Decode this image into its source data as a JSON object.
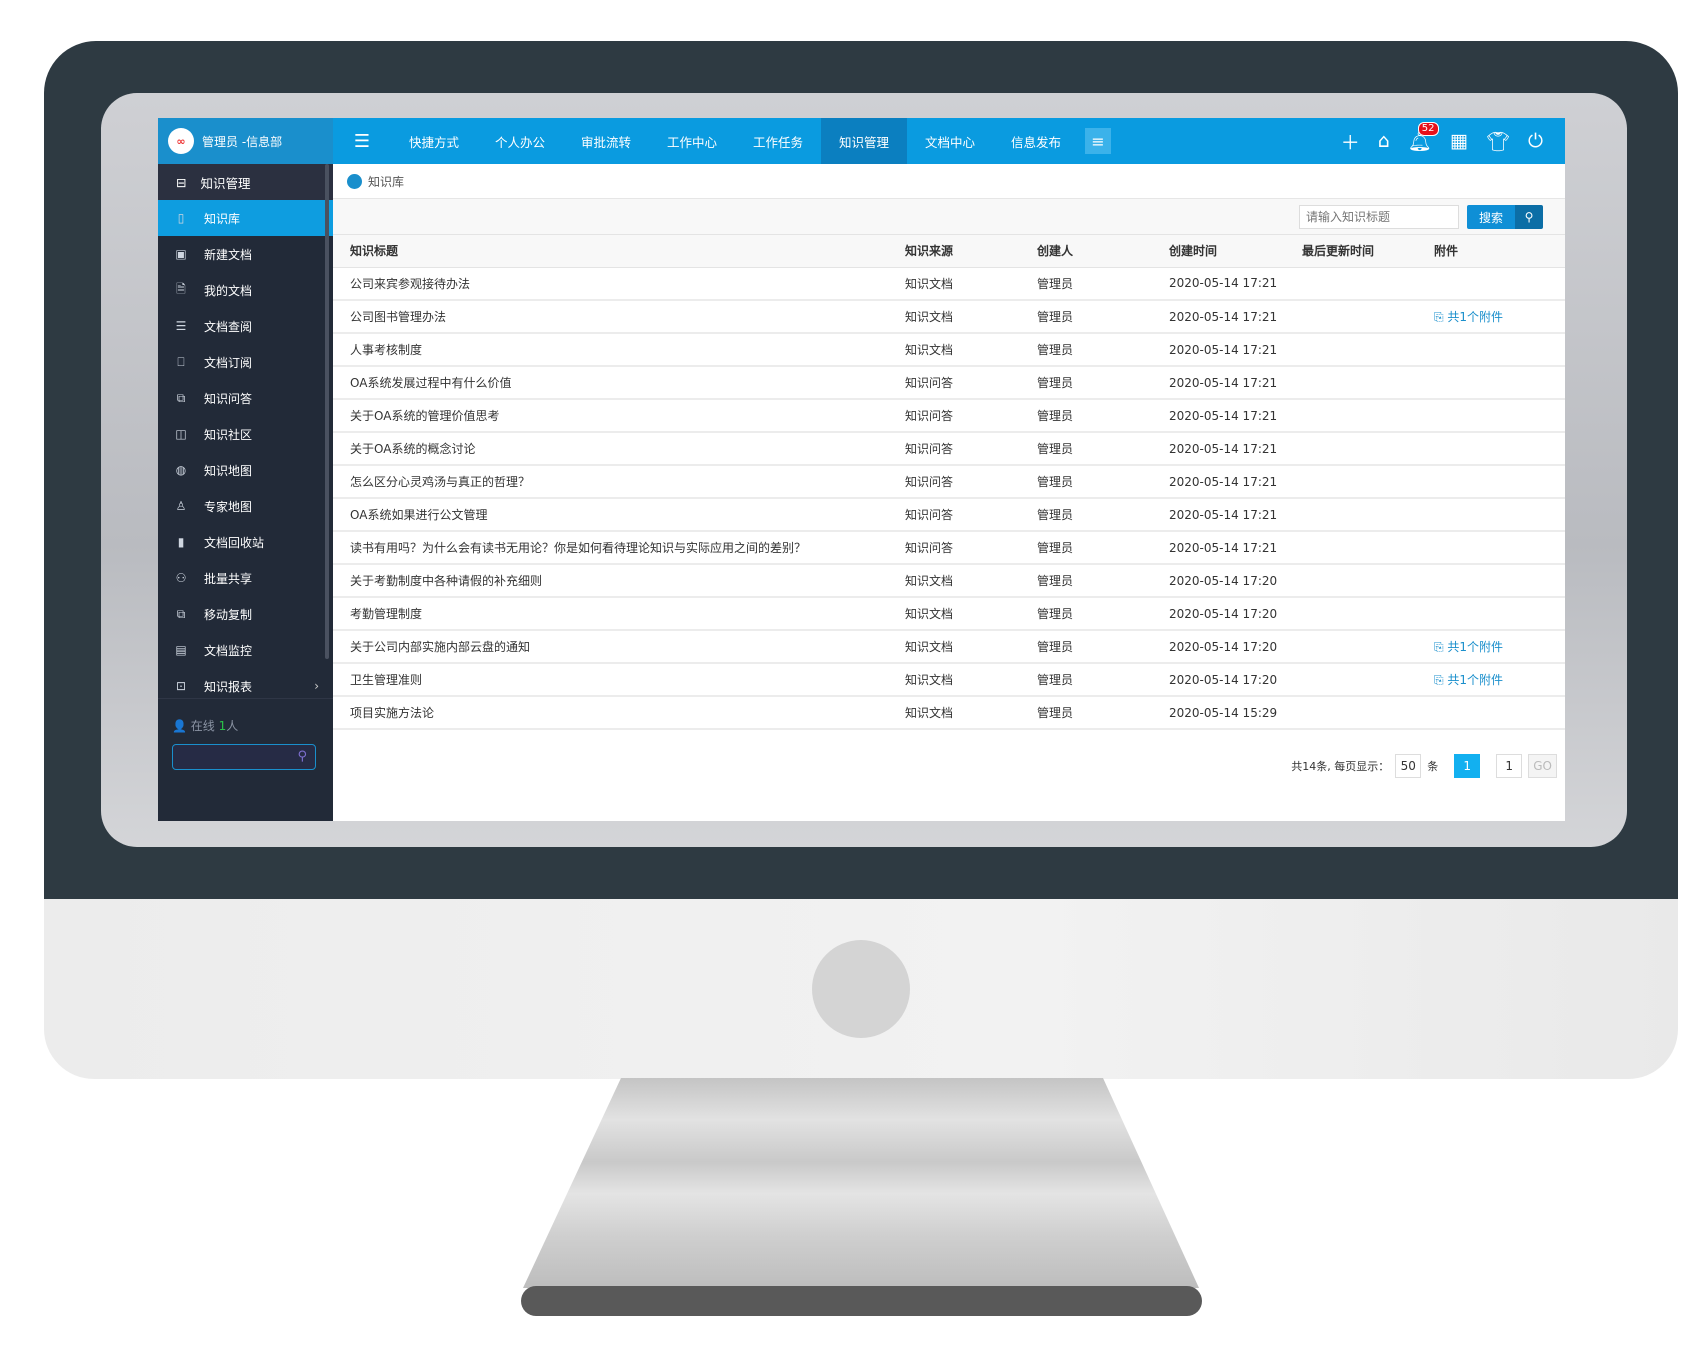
{
  "user": {
    "name": "管理员 -信息部",
    "logo_text": "∞"
  },
  "sidebar": {
    "header": "知识管理",
    "items": [
      {
        "label": "知识库",
        "icon": "book-icon",
        "active": true
      },
      {
        "label": "新建文档",
        "icon": "new-doc-icon"
      },
      {
        "label": "我的文档",
        "icon": "document-icon"
      },
      {
        "label": "文档查阅",
        "icon": "list-icon"
      },
      {
        "label": "文档订阅",
        "icon": "bookmark-icon"
      },
      {
        "label": "知识问答",
        "icon": "chat-icon"
      },
      {
        "label": "知识社区",
        "icon": "community-icon"
      },
      {
        "label": "知识地图",
        "icon": "globe-icon"
      },
      {
        "label": "专家地图",
        "icon": "user-icon"
      },
      {
        "label": "文档回收站",
        "icon": "trash-icon"
      },
      {
        "label": "批量共享",
        "icon": "users-icon"
      },
      {
        "label": "移动复制",
        "icon": "copy-icon"
      },
      {
        "label": "文档监控",
        "icon": "monitor-doc-icon"
      },
      {
        "label": "知识报表",
        "icon": "report-icon",
        "has_submenu": true
      }
    ],
    "online_label": "在线",
    "online_count": "1",
    "online_unit": "人"
  },
  "topnav": {
    "items": [
      "快捷方式",
      "个人办公",
      "审批流转",
      "工作中心",
      "工作任务",
      "知识管理",
      "文档中心",
      "信息发布"
    ],
    "active": "知识管理",
    "notification_count": "52"
  },
  "breadcrumb": "知识库",
  "search": {
    "placeholder": "请输入知识标题",
    "button": "搜索"
  },
  "table": {
    "columns": [
      "知识标题",
      "知识来源",
      "创建人",
      "创建时间",
      "最后更新时间",
      "附件"
    ],
    "rows": [
      [
        "公司来宾参观接待办法",
        "知识文档",
        "管理员",
        "2020-05-14 17:21",
        "",
        ""
      ],
      [
        "公司图书管理办法",
        "知识文档",
        "管理员",
        "2020-05-14 17:21",
        "",
        "共1个附件"
      ],
      [
        "人事考核制度",
        "知识文档",
        "管理员",
        "2020-05-14 17:21",
        "",
        ""
      ],
      [
        "OA系统发展过程中有什么价值",
        "知识问答",
        "管理员",
        "2020-05-14 17:21",
        "",
        ""
      ],
      [
        "关于OA系统的管理价值思考",
        "知识问答",
        "管理员",
        "2020-05-14 17:21",
        "",
        ""
      ],
      [
        "关于OA系统的概念讨论",
        "知识问答",
        "管理员",
        "2020-05-14 17:21",
        "",
        ""
      ],
      [
        "怎么区分心灵鸡汤与真正的哲理？",
        "知识问答",
        "管理员",
        "2020-05-14 17:21",
        "",
        ""
      ],
      [
        "OA系统如果进行公文管理",
        "知识问答",
        "管理员",
        "2020-05-14 17:21",
        "",
        ""
      ],
      [
        "读书有用吗？为什么会有读书无用论？你是如何看待理论知识与实际应用之间的差别？",
        "知识问答",
        "管理员",
        "2020-05-14 17:21",
        "",
        ""
      ],
      [
        "关于考勤制度中各种请假的补充细则",
        "知识文档",
        "管理员",
        "2020-05-14 17:20",
        "",
        ""
      ],
      [
        "考勤管理制度",
        "知识文档",
        "管理员",
        "2020-05-14 17:20",
        "",
        ""
      ],
      [
        "关于公司内部实施内部云盘的通知",
        "知识文档",
        "管理员",
        "2020-05-14 17:20",
        "",
        "共1个附件"
      ],
      [
        "卫生管理准则",
        "知识文档",
        "管理员",
        "2020-05-14 17:20",
        "",
        "共1个附件"
      ],
      [
        "项目实施方法论",
        "知识文档",
        "管理员",
        "2020-05-14 15:29",
        "",
        ""
      ]
    ]
  },
  "pager": {
    "summary": "共14条, 每页显示：",
    "page_size": "50",
    "unit": "条",
    "current_page": "1",
    "goto_value": "1",
    "go": "GO"
  },
  "colors": {
    "accent": "#0a9be0",
    "sidebar": "#222a38",
    "badge": "#e8101b"
  }
}
